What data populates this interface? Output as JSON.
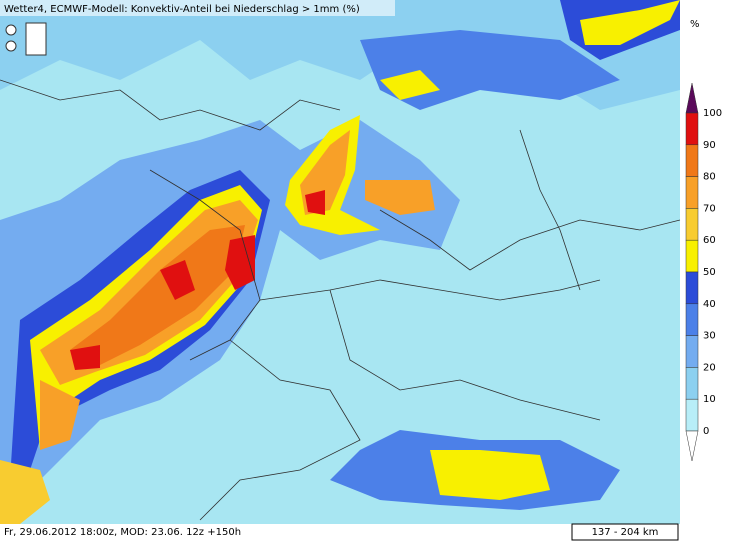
{
  "header": {
    "title": "Wetter4, ECMWF-Modell: Konvektiv-Anteil bei Niederschlag > 1mm (%)"
  },
  "footer": {
    "time": "Fr, 29.06.2012 18:00z, MOD: 23.06. 12z +150h",
    "scale": "137 - 204 km"
  },
  "legend": {
    "unit": "%",
    "levels": [
      {
        "label": 100,
        "color": "#e01010"
      },
      {
        "label": 90,
        "color": "#f07818"
      },
      {
        "label": 80,
        "color": "#f8a028"
      },
      {
        "label": 70,
        "color": "#f8cc30"
      },
      {
        "label": 60,
        "color": "#f8f000"
      },
      {
        "label": 50,
        "color": "#2c4cd8"
      },
      {
        "label": 40,
        "color": "#4c80e8"
      },
      {
        "label": 30,
        "color": "#74acf0"
      },
      {
        "label": 20,
        "color": "#8cd0f0"
      },
      {
        "label": 10,
        "color": "#b8eef8"
      },
      {
        "label": 0,
        "color": "#ffffff"
      }
    ]
  }
}
